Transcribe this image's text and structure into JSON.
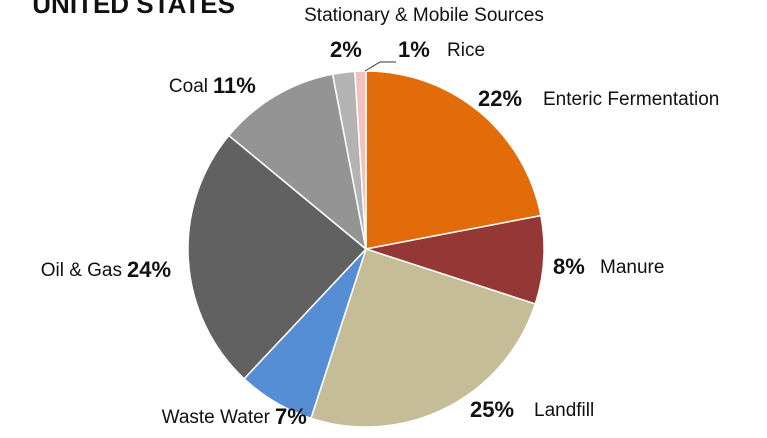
{
  "chart_data": {
    "type": "pie",
    "title": "UNITED STATES",
    "categories": [
      "Enteric Fermentation",
      "Manure",
      "Landfill",
      "Waste Water",
      "Oil & Gas",
      "Coal",
      "Stationary & Mobile Sources",
      "Rice"
    ],
    "values": [
      22,
      8,
      25,
      7,
      24,
      11,
      2,
      1
    ],
    "value_labels": [
      "22%",
      "8%",
      "25%",
      "7%",
      "24%",
      "11%",
      "2%",
      "1%"
    ],
    "colors": [
      "#e36c0a",
      "#953735",
      "#c4bd97",
      "#558ed5",
      "#616161",
      "#949494",
      "#b3b3b3",
      "#f2c0c0"
    ]
  }
}
